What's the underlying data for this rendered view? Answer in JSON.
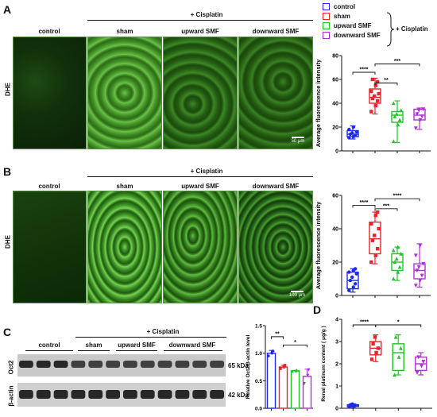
{
  "panels": {
    "A": "A",
    "B": "B",
    "C": "C",
    "D": "D"
  },
  "cisplatin_header": "+ Cisplatin",
  "columns": [
    "control",
    "sham",
    "upward SMF",
    "downward SMF"
  ],
  "row_label": "DHE",
  "scalebar_a": "50 μm",
  "scalebar_b": "100 μm",
  "legend": {
    "items": [
      {
        "label": "control",
        "color": "#1f2be8"
      },
      {
        "label": "sham",
        "color": "#e8252a"
      },
      {
        "label": "upward SMF",
        "color": "#22c22a"
      },
      {
        "label": "downward SMF",
        "color": "#b02ed8"
      }
    ],
    "bracket_label": "+ Cisplatin"
  },
  "blot": {
    "groups": [
      "control",
      "sham",
      "upward SMF",
      "downward SMF"
    ],
    "cisplatin_header": "+ Cisplatin",
    "rows": [
      {
        "name": "Oct2",
        "kda": "65 kDa"
      },
      {
        "name": "β-actin",
        "kda": "42 kDa"
      }
    ]
  },
  "chart_data": [
    {
      "type": "box",
      "ylabel": "Average fluorescence intensity",
      "ylim": [
        0,
        80
      ],
      "yticks": [
        0,
        20,
        40,
        60,
        80
      ],
      "groups": [
        {
          "name": "control",
          "color": "#1f2be8",
          "min": 10,
          "q1": 12,
          "median": 14,
          "q3": 17,
          "max": 21,
          "points": [
            11,
            12,
            13,
            14,
            15,
            16,
            18,
            20
          ]
        },
        {
          "name": "sham",
          "color": "#e8252a",
          "min": 31,
          "q1": 40,
          "median": 45,
          "q3": 52,
          "max": 61,
          "points": [
            33,
            38,
            42,
            44,
            46,
            48,
            50,
            55,
            58,
            60
          ]
        },
        {
          "name": "upward SMF",
          "color": "#22c22a",
          "min": 7,
          "q1": 24,
          "median": 30,
          "q3": 33,
          "max": 42,
          "points": [
            8,
            22,
            26,
            29,
            31,
            34,
            40
          ]
        },
        {
          "name": "downward SMF",
          "color": "#b02ed8",
          "min": 18,
          "q1": 26,
          "median": 30,
          "q3": 35,
          "max": 36,
          "points": [
            19,
            26,
            29,
            31,
            34,
            35
          ]
        }
      ],
      "significance": [
        {
          "from": 0,
          "to": 1,
          "label": "****",
          "y": 66
        },
        {
          "from": 1,
          "to": 2,
          "label": "**",
          "y": 57
        },
        {
          "from": 1,
          "to": 3,
          "label": "***",
          "y": 73
        }
      ]
    },
    {
      "type": "box",
      "ylabel": "Average fluorescence intensity",
      "ylim": [
        0,
        60
      ],
      "yticks": [
        0,
        20,
        40,
        60
      ],
      "groups": [
        {
          "name": "control",
          "color": "#1f2be8",
          "min": 2,
          "q1": 4,
          "median": 9,
          "q3": 14,
          "max": 16,
          "points": [
            3,
            5,
            7,
            9,
            11,
            13,
            14,
            15,
            16
          ]
        },
        {
          "name": "sham",
          "color": "#e8252a",
          "min": 19,
          "q1": 25,
          "median": 34,
          "q3": 44,
          "max": 50,
          "points": [
            20,
            24,
            28,
            33,
            36,
            40,
            43,
            48,
            50
          ]
        },
        {
          "name": "upward SMF",
          "color": "#22c22a",
          "min": 9,
          "q1": 15,
          "median": 20,
          "q3": 25,
          "max": 29,
          "points": [
            10,
            14,
            17,
            20,
            22,
            25,
            27,
            29
          ]
        },
        {
          "name": "downward SMF",
          "color": "#b02ed8",
          "min": 5,
          "q1": 10,
          "median": 15,
          "q3": 19,
          "max": 31,
          "points": [
            6,
            9,
            12,
            15,
            17,
            19,
            24,
            30
          ]
        }
      ],
      "significance": [
        {
          "from": 0,
          "to": 1,
          "label": "****",
          "y": 54
        },
        {
          "from": 1,
          "to": 2,
          "label": "***",
          "y": 52
        },
        {
          "from": 1,
          "to": 3,
          "label": "****",
          "y": 58
        }
      ]
    },
    {
      "type": "bar",
      "ylabel": "Relative Oct2/β-actin level",
      "ylim": [
        0,
        1.5
      ],
      "yticks": [
        0.0,
        0.5,
        1.0,
        1.5
      ],
      "groups": [
        {
          "name": "control",
          "color": "#1f2be8",
          "value": 1.0,
          "err": 0.05,
          "points": [
            0.95,
            1.0,
            1.04
          ]
        },
        {
          "name": "sham",
          "color": "#e8252a",
          "value": 0.75,
          "err": 0.03,
          "points": [
            0.72,
            0.75,
            0.78
          ]
        },
        {
          "name": "upward SMF",
          "color": "#22c22a",
          "value": 0.68,
          "err": 0.01,
          "points": [
            0.67,
            0.68,
            0.69
          ]
        },
        {
          "name": "downward SMF",
          "color": "#b02ed8",
          "value": 0.58,
          "err": 0.13,
          "points": [
            0.45,
            0.6,
            0.7
          ]
        }
      ],
      "significance": [
        {
          "from": 0,
          "to": 1,
          "label": "**",
          "y": 1.3
        },
        {
          "from": 1,
          "to": 3,
          "label": "*",
          "y": 1.15
        }
      ]
    },
    {
      "type": "box",
      "ylabel": "Renal platinum content ( μg/g )",
      "ylim": [
        0,
        4
      ],
      "yticks": [
        0,
        1,
        2,
        3,
        4
      ],
      "groups": [
        {
          "name": "control",
          "color": "#1f2be8",
          "min": 0.05,
          "q1": 0.08,
          "median": 0.12,
          "q3": 0.16,
          "max": 0.2,
          "points": [
            0.06,
            0.1,
            0.13,
            0.16,
            0.19
          ]
        },
        {
          "name": "sham",
          "color": "#e8252a",
          "min": 2.1,
          "q1": 2.4,
          "median": 2.7,
          "q3": 3.0,
          "max": 3.3,
          "points": [
            2.2,
            2.5,
            2.7,
            2.9,
            3.2
          ]
        },
        {
          "name": "upward SMF",
          "color": "#22c22a",
          "min": 1.5,
          "q1": 1.7,
          "median": 2.5,
          "q3": 2.9,
          "max": 3.3,
          "points": [
            1.5,
            2.3,
            2.7,
            3.2
          ]
        },
        {
          "name": "downward SMF",
          "color": "#b02ed8",
          "min": 1.5,
          "q1": 1.7,
          "median": 2.0,
          "q3": 2.3,
          "max": 2.5,
          "points": [
            1.6,
            1.9,
            2.1,
            2.3
          ]
        }
      ],
      "significance": [
        {
          "from": 0,
          "to": 1,
          "label": "****",
          "y": 3.75
        },
        {
          "from": 1,
          "to": 3,
          "label": "*",
          "y": 3.75
        }
      ]
    }
  ]
}
